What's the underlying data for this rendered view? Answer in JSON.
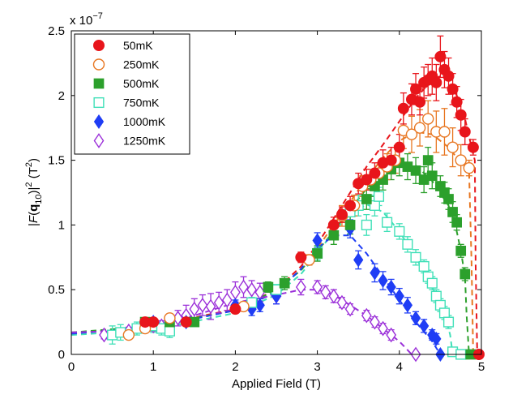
{
  "chart_data": {
    "type": "scatter",
    "title": "",
    "xlabel": "Applied Field (T)",
    "ylabel_parts": {
      "pre": "|",
      "F": "F",
      "open": "(",
      "q": "q",
      "sub": "10",
      "close": ")|",
      "sup": "2",
      "unit": " (T",
      "unit_sup": "2",
      "unit_close": ")"
    },
    "xlim": [
      0,
      5
    ],
    "ylim": [
      0,
      2.5
    ],
    "x_ticks": [
      0,
      1,
      2,
      3,
      4,
      5
    ],
    "y_ticks": [
      0,
      0.5,
      1,
      1.5,
      2,
      2.5
    ],
    "y_multiplier": {
      "base": "x 10",
      "exponent": "−7"
    },
    "grid": false,
    "legend_position": "top-left",
    "series": [
      {
        "name": "50mK",
        "color": "#e8151b",
        "marker": "circle",
        "filled": true,
        "points": [
          [
            0.9,
            0.25
          ],
          [
            1.0,
            0.25
          ],
          [
            1.4,
            0.25
          ],
          [
            2.0,
            0.35
          ],
          [
            2.8,
            0.75
          ],
          [
            3.2,
            1.0
          ],
          [
            3.3,
            1.08
          ],
          [
            3.4,
            1.15
          ],
          [
            3.5,
            1.32
          ],
          [
            3.6,
            1.35
          ],
          [
            3.7,
            1.4
          ],
          [
            3.8,
            1.48
          ],
          [
            3.9,
            1.5
          ],
          [
            4.0,
            1.6
          ],
          [
            4.05,
            1.9
          ],
          [
            4.15,
            1.97
          ],
          [
            4.2,
            2.05
          ],
          [
            4.25,
            1.95
          ],
          [
            4.3,
            2.1
          ],
          [
            4.35,
            2.12
          ],
          [
            4.4,
            2.15
          ],
          [
            4.45,
            2.1
          ],
          [
            4.5,
            2.3
          ],
          [
            4.55,
            2.2
          ],
          [
            4.6,
            2.15
          ],
          [
            4.65,
            2.05
          ],
          [
            4.7,
            1.95
          ],
          [
            4.75,
            1.85
          ],
          [
            4.8,
            1.72
          ],
          [
            4.9,
            1.6
          ],
          [
            4.97,
            0.0
          ]
        ],
        "errors": [
          0.03,
          0.03,
          0.03,
          0.03,
          0.04,
          0.06,
          0.06,
          0.07,
          0.08,
          0.08,
          0.08,
          0.1,
          0.1,
          0.1,
          0.12,
          0.12,
          0.12,
          0.1,
          0.12,
          0.12,
          0.14,
          0.14,
          0.16,
          0.14,
          0.14,
          0.12,
          0.12,
          0.12,
          0.1,
          0.06,
          0.0
        ],
        "curve": [
          [
            0.0,
            0.16
          ],
          [
            1.0,
            0.22
          ],
          [
            2.0,
            0.35
          ],
          [
            2.5,
            0.5
          ],
          [
            2.8,
            0.68
          ],
          [
            3.0,
            0.85
          ],
          [
            3.2,
            1.05
          ],
          [
            3.4,
            1.25
          ],
          [
            3.6,
            1.45
          ],
          [
            3.8,
            1.62
          ],
          [
            4.0,
            1.8
          ],
          [
            4.2,
            1.98
          ],
          [
            4.4,
            2.12
          ],
          [
            4.5,
            2.15
          ],
          [
            4.6,
            2.12
          ],
          [
            4.7,
            2.0
          ],
          [
            4.8,
            1.82
          ],
          [
            4.88,
            1.6
          ],
          [
            4.92,
            1.5
          ],
          [
            4.93,
            0.7
          ],
          [
            4.95,
            0.0
          ]
        ]
      },
      {
        "name": "250mK",
        "color": "#e87722",
        "marker": "circle",
        "filled": false,
        "points": [
          [
            0.7,
            0.15
          ],
          [
            0.9,
            0.2
          ],
          [
            1.2,
            0.28
          ],
          [
            2.1,
            0.37
          ],
          [
            2.9,
            0.73
          ],
          [
            3.3,
            1.07
          ],
          [
            3.45,
            1.15
          ],
          [
            3.55,
            1.3
          ],
          [
            3.65,
            1.35
          ],
          [
            3.75,
            1.4
          ],
          [
            3.85,
            1.45
          ],
          [
            3.95,
            1.5
          ],
          [
            4.05,
            1.73
          ],
          [
            4.15,
            1.7
          ],
          [
            4.25,
            1.75
          ],
          [
            4.35,
            1.82
          ],
          [
            4.45,
            1.72
          ],
          [
            4.55,
            1.72
          ],
          [
            4.65,
            1.6
          ],
          [
            4.75,
            1.5
          ],
          [
            4.85,
            1.44
          ]
        ],
        "errors": [
          0.03,
          0.03,
          0.03,
          0.03,
          0.04,
          0.08,
          0.08,
          0.08,
          0.08,
          0.08,
          0.1,
          0.1,
          0.14,
          0.14,
          0.14,
          0.14,
          0.16,
          0.18,
          0.15,
          0.12,
          0.06
        ],
        "curve": [
          [
            0.0,
            0.16
          ],
          [
            1.0,
            0.22
          ],
          [
            2.0,
            0.34
          ],
          [
            2.5,
            0.48
          ],
          [
            2.8,
            0.66
          ],
          [
            3.0,
            0.82
          ],
          [
            3.2,
            1.0
          ],
          [
            3.4,
            1.18
          ],
          [
            3.6,
            1.36
          ],
          [
            3.8,
            1.52
          ],
          [
            4.0,
            1.65
          ],
          [
            4.2,
            1.72
          ],
          [
            4.4,
            1.7
          ],
          [
            4.6,
            1.6
          ],
          [
            4.75,
            1.48
          ],
          [
            4.85,
            1.42
          ],
          [
            4.88,
            0.7
          ],
          [
            4.9,
            0.0
          ]
        ]
      },
      {
        "name": "500mK",
        "color": "#2ca02c",
        "marker": "square",
        "filled": true,
        "points": [
          [
            0.9,
            0.25
          ],
          [
            1.2,
            0.25
          ],
          [
            1.5,
            0.25
          ],
          [
            2.4,
            0.52
          ],
          [
            2.6,
            0.55
          ],
          [
            3.0,
            0.78
          ],
          [
            3.2,
            0.92
          ],
          [
            3.4,
            1.0
          ],
          [
            3.6,
            1.2
          ],
          [
            3.7,
            1.3
          ],
          [
            3.8,
            1.35
          ],
          [
            3.9,
            1.43
          ],
          [
            4.0,
            1.48
          ],
          [
            4.1,
            1.45
          ],
          [
            4.2,
            1.42
          ],
          [
            4.3,
            1.35
          ],
          [
            4.35,
            1.5
          ],
          [
            4.4,
            1.38
          ],
          [
            4.5,
            1.3
          ],
          [
            4.55,
            1.25
          ],
          [
            4.6,
            1.2
          ],
          [
            4.65,
            1.1
          ],
          [
            4.7,
            1.02
          ],
          [
            4.75,
            0.8
          ],
          [
            4.8,
            0.62
          ],
          [
            4.87,
            0.0
          ]
        ],
        "errors": [
          0.03,
          0.03,
          0.03,
          0.04,
          0.05,
          0.06,
          0.07,
          0.07,
          0.08,
          0.08,
          0.08,
          0.08,
          0.1,
          0.1,
          0.1,
          0.1,
          0.1,
          0.1,
          0.08,
          0.08,
          0.08,
          0.08,
          0.06,
          0.05,
          0.05,
          0.0
        ],
        "curve": [
          [
            0.0,
            0.17
          ],
          [
            1.0,
            0.22
          ],
          [
            2.0,
            0.34
          ],
          [
            2.5,
            0.5
          ],
          [
            2.8,
            0.65
          ],
          [
            3.0,
            0.8
          ],
          [
            3.2,
            0.95
          ],
          [
            3.4,
            1.12
          ],
          [
            3.6,
            1.28
          ],
          [
            3.8,
            1.42
          ],
          [
            4.0,
            1.5
          ],
          [
            4.2,
            1.46
          ],
          [
            4.4,
            1.34
          ],
          [
            4.6,
            1.15
          ],
          [
            4.7,
            0.95
          ],
          [
            4.75,
            0.8
          ],
          [
            4.8,
            0.6
          ],
          [
            4.82,
            0.3
          ],
          [
            4.85,
            0.0
          ]
        ]
      },
      {
        "name": "750mK",
        "color": "#40e0b8",
        "marker": "square",
        "filled": false,
        "points": [
          [
            0.5,
            0.15
          ],
          [
            0.6,
            0.17
          ],
          [
            0.8,
            0.2
          ],
          [
            1.0,
            0.22
          ],
          [
            1.1,
            0.2
          ],
          [
            1.2,
            0.18
          ],
          [
            2.2,
            0.4
          ],
          [
            2.5,
            0.5
          ],
          [
            3.0,
            0.78
          ],
          [
            3.4,
            1.1
          ],
          [
            3.5,
            1.15
          ],
          [
            3.6,
            1.0
          ],
          [
            3.7,
            1.15
          ],
          [
            3.75,
            1.22
          ],
          [
            3.85,
            1.02
          ],
          [
            4.0,
            0.95
          ],
          [
            4.1,
            0.85
          ],
          [
            4.2,
            0.75
          ],
          [
            4.3,
            0.68
          ],
          [
            4.35,
            0.6
          ],
          [
            4.4,
            0.55
          ],
          [
            4.45,
            0.45
          ],
          [
            4.5,
            0.38
          ],
          [
            4.55,
            0.32
          ],
          [
            4.6,
            0.25
          ],
          [
            4.65,
            0.02
          ],
          [
            4.75,
            0.0
          ]
        ],
        "errors": [
          0.07,
          0.06,
          0.05,
          0.05,
          0.05,
          0.05,
          0.04,
          0.04,
          0.05,
          0.07,
          0.08,
          0.08,
          0.08,
          0.07,
          0.07,
          0.06,
          0.06,
          0.06,
          0.05,
          0.05,
          0.05,
          0.05,
          0.05,
          0.05,
          0.05,
          0.0,
          0.0
        ],
        "curve": [
          [
            0.0,
            0.15
          ],
          [
            1.0,
            0.19
          ],
          [
            2.0,
            0.32
          ],
          [
            2.5,
            0.46
          ],
          [
            2.8,
            0.62
          ],
          [
            3.0,
            0.78
          ],
          [
            3.2,
            0.95
          ],
          [
            3.4,
            1.08
          ],
          [
            3.6,
            1.16
          ],
          [
            3.8,
            1.1
          ],
          [
            4.0,
            0.95
          ],
          [
            4.2,
            0.75
          ],
          [
            4.4,
            0.52
          ],
          [
            4.55,
            0.32
          ],
          [
            4.62,
            0.15
          ],
          [
            4.65,
            0.0
          ]
        ]
      },
      {
        "name": "1000mK",
        "color": "#1f3df5",
        "marker": "diamond",
        "filled": true,
        "points": [
          [
            1.0,
            0.25
          ],
          [
            1.4,
            0.25
          ],
          [
            2.0,
            0.38
          ],
          [
            2.2,
            0.35
          ],
          [
            2.3,
            0.38
          ],
          [
            2.5,
            0.45
          ],
          [
            3.0,
            0.88
          ],
          [
            3.4,
            0.97
          ],
          [
            3.5,
            0.73
          ],
          [
            3.7,
            0.63
          ],
          [
            3.8,
            0.57
          ],
          [
            3.9,
            0.52
          ],
          [
            4.0,
            0.45
          ],
          [
            4.1,
            0.38
          ],
          [
            4.2,
            0.28
          ],
          [
            4.3,
            0.22
          ],
          [
            4.4,
            0.15
          ],
          [
            4.45,
            0.12
          ],
          [
            4.5,
            0.0
          ]
        ],
        "errors": [
          0.03,
          0.03,
          0.04,
          0.05,
          0.05,
          0.06,
          0.06,
          0.07,
          0.07,
          0.07,
          0.07,
          0.06,
          0.06,
          0.06,
          0.05,
          0.05,
          0.04,
          0.04,
          0.0
        ],
        "curve": [
          [
            0.0,
            0.16
          ],
          [
            1.0,
            0.21
          ],
          [
            2.0,
            0.34
          ],
          [
            2.5,
            0.48
          ],
          [
            2.8,
            0.66
          ],
          [
            3.0,
            0.82
          ],
          [
            3.2,
            0.92
          ],
          [
            3.4,
            0.92
          ],
          [
            3.6,
            0.78
          ],
          [
            3.8,
            0.6
          ],
          [
            4.0,
            0.42
          ],
          [
            4.2,
            0.25
          ],
          [
            4.4,
            0.1
          ],
          [
            4.5,
            0.0
          ]
        ]
      },
      {
        "name": "1250mK",
        "color": "#9b30d9",
        "marker": "diamond",
        "filled": false,
        "points": [
          [
            0.4,
            0.15
          ],
          [
            0.7,
            0.18
          ],
          [
            1.0,
            0.22
          ],
          [
            1.1,
            0.22
          ],
          [
            1.3,
            0.28
          ],
          [
            1.4,
            0.3
          ],
          [
            1.5,
            0.35
          ],
          [
            1.6,
            0.38
          ],
          [
            1.7,
            0.37
          ],
          [
            1.8,
            0.4
          ],
          [
            1.9,
            0.42
          ],
          [
            2.0,
            0.48
          ],
          [
            2.1,
            0.52
          ],
          [
            2.2,
            0.5
          ],
          [
            2.3,
            0.48
          ],
          [
            2.5,
            0.45
          ],
          [
            2.8,
            0.52
          ],
          [
            3.0,
            0.52
          ],
          [
            3.1,
            0.48
          ],
          [
            3.2,
            0.45
          ],
          [
            3.3,
            0.4
          ],
          [
            3.4,
            0.35
          ],
          [
            3.6,
            0.3
          ],
          [
            3.7,
            0.25
          ],
          [
            3.8,
            0.2
          ],
          [
            3.9,
            0.15
          ],
          [
            4.2,
            0.0
          ]
        ],
        "errors": [
          0.03,
          0.03,
          0.04,
          0.04,
          0.06,
          0.08,
          0.08,
          0.08,
          0.1,
          0.08,
          0.08,
          0.08,
          0.08,
          0.07,
          0.07,
          0.06,
          0.06,
          0.05,
          0.05,
          0.05,
          0.04,
          0.04,
          0.04,
          0.04,
          0.04,
          0.04,
          0.0
        ],
        "curve": [
          [
            0.0,
            0.17
          ],
          [
            0.5,
            0.18
          ],
          [
            1.0,
            0.22
          ],
          [
            1.5,
            0.3
          ],
          [
            2.0,
            0.4
          ],
          [
            2.5,
            0.46
          ],
          [
            2.8,
            0.5
          ],
          [
            3.0,
            0.5
          ],
          [
            3.2,
            0.46
          ],
          [
            3.4,
            0.38
          ],
          [
            3.6,
            0.3
          ],
          [
            3.8,
            0.2
          ],
          [
            4.0,
            0.1
          ],
          [
            4.15,
            0.0
          ]
        ]
      }
    ]
  }
}
